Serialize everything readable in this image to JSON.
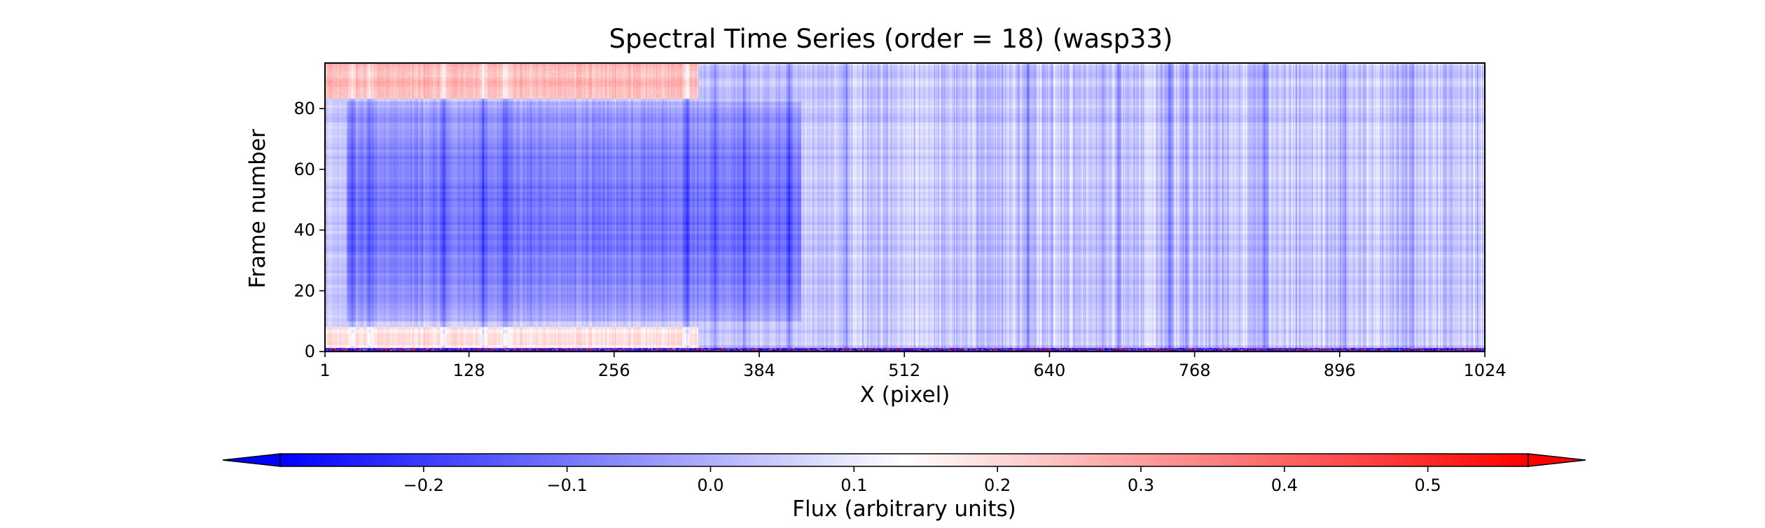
{
  "chart_data": {
    "type": "heatmap",
    "title": "Spectral Time Series (order = 18) (wasp33)",
    "xlabel": "X (pixel)",
    "ylabel": "Frame number",
    "xlim": [
      1,
      1024
    ],
    "ylim": [
      0,
      95
    ],
    "x_ticks": [
      1,
      128,
      256,
      384,
      512,
      640,
      768,
      896,
      1024
    ],
    "y_ticks": [
      0,
      20,
      40,
      60,
      80
    ],
    "colorbar": {
      "label": "Flux (arbitrary units)",
      "vmin": -0.3,
      "vmax": 0.57,
      "center": 0.115,
      "ticks": [
        -0.2,
        -0.1,
        0.0,
        0.1,
        0.2,
        0.3,
        0.4,
        0.5
      ],
      "extend": "both",
      "colormap": "bwr",
      "colors": {
        "low": "#0000ff",
        "mid": "#ffffff",
        "high": "#ff0000"
      }
    },
    "grid": false,
    "features": {
      "base_value": 0.02,
      "blue_band_x": [
        20,
        420
      ],
      "blue_band_frames": [
        10,
        82
      ],
      "red_edge_frames_top": [
        84,
        95
      ],
      "red_edge_frames_bottom": [
        1,
        7
      ],
      "strong_columns_x": [
        24,
        40,
        105,
        140,
        160,
        320,
        345,
        370,
        410,
        460,
        620,
        700,
        745,
        760,
        830,
        900,
        960
      ],
      "first_frame_noise": true
    }
  }
}
